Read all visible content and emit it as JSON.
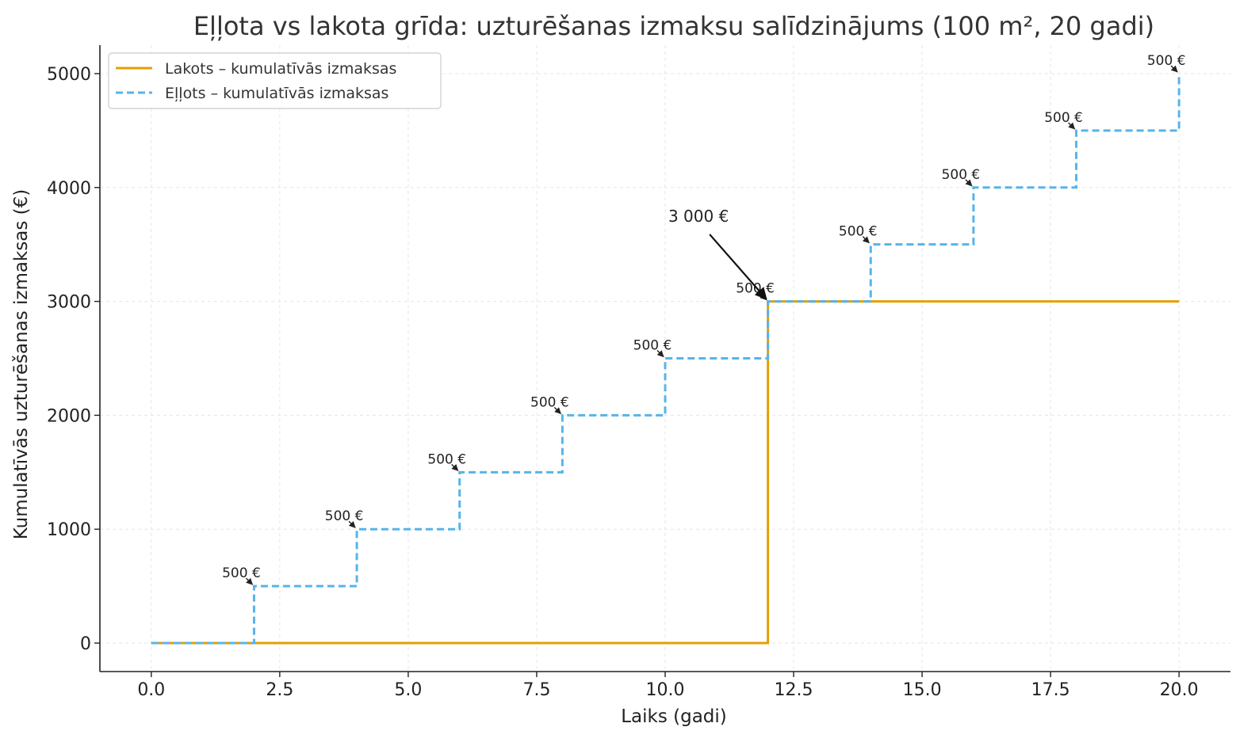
{
  "chart_data": {
    "type": "line",
    "title": "Eļļota vs lakota grīda: uzturēšanas izmaksu salīdzinājums (100 m², 20 gadi)",
    "xlabel": "Laiks (gadi)",
    "ylabel": "Kumulatīvās uzturēšanas izmaksas (€)",
    "xlim": [
      -1,
      21
    ],
    "ylim": [
      -250,
      5250
    ],
    "xticks": [
      0,
      2.5,
      5,
      7.5,
      10,
      12.5,
      15,
      17.5,
      20
    ],
    "xtick_labels": [
      "0.0",
      "2.5",
      "5.0",
      "7.5",
      "10.0",
      "12.5",
      "15.0",
      "17.5",
      "20.0"
    ],
    "yticks": [
      0,
      1000,
      2000,
      3000,
      4000,
      5000
    ],
    "ytick_labels": [
      "0",
      "1000",
      "2000",
      "3000",
      "4000",
      "5000"
    ],
    "grid": true,
    "legend_position": "top-left",
    "series": [
      {
        "name": "Lakots – kumulatīvās izmaksas",
        "color": "#E69F00",
        "style": "solid",
        "step": "post",
        "x": [
          0,
          12,
          20
        ],
        "y": [
          0,
          3000,
          3000
        ]
      },
      {
        "name": "Eļļots – kumulatīvās izmaksas",
        "color": "#56B4E9",
        "style": "dashed",
        "step": "post",
        "x": [
          0,
          2,
          4,
          6,
          8,
          10,
          12,
          14,
          16,
          18,
          20
        ],
        "y": [
          0,
          500,
          1000,
          1500,
          2000,
          2500,
          3000,
          3500,
          4000,
          4500,
          5000
        ]
      }
    ],
    "annotations": [
      {
        "x": 2,
        "y": 500,
        "text": "500 €"
      },
      {
        "x": 4,
        "y": 1000,
        "text": "500 €"
      },
      {
        "x": 6,
        "y": 1500,
        "text": "500 €"
      },
      {
        "x": 8,
        "y": 2000,
        "text": "500 €"
      },
      {
        "x": 10,
        "y": 2500,
        "text": "500 €"
      },
      {
        "x": 12,
        "y": 3000,
        "text": "500 €"
      },
      {
        "x": 14,
        "y": 3500,
        "text": "500 €"
      },
      {
        "x": 16,
        "y": 4000,
        "text": "500 €"
      },
      {
        "x": 18,
        "y": 4500,
        "text": "500 €"
      },
      {
        "x": 20,
        "y": 5000,
        "text": "500 €"
      }
    ],
    "callout": {
      "x": 12,
      "y": 3000,
      "text": "3 000 €",
      "text_x": 10.65,
      "text_y": 3700
    }
  }
}
